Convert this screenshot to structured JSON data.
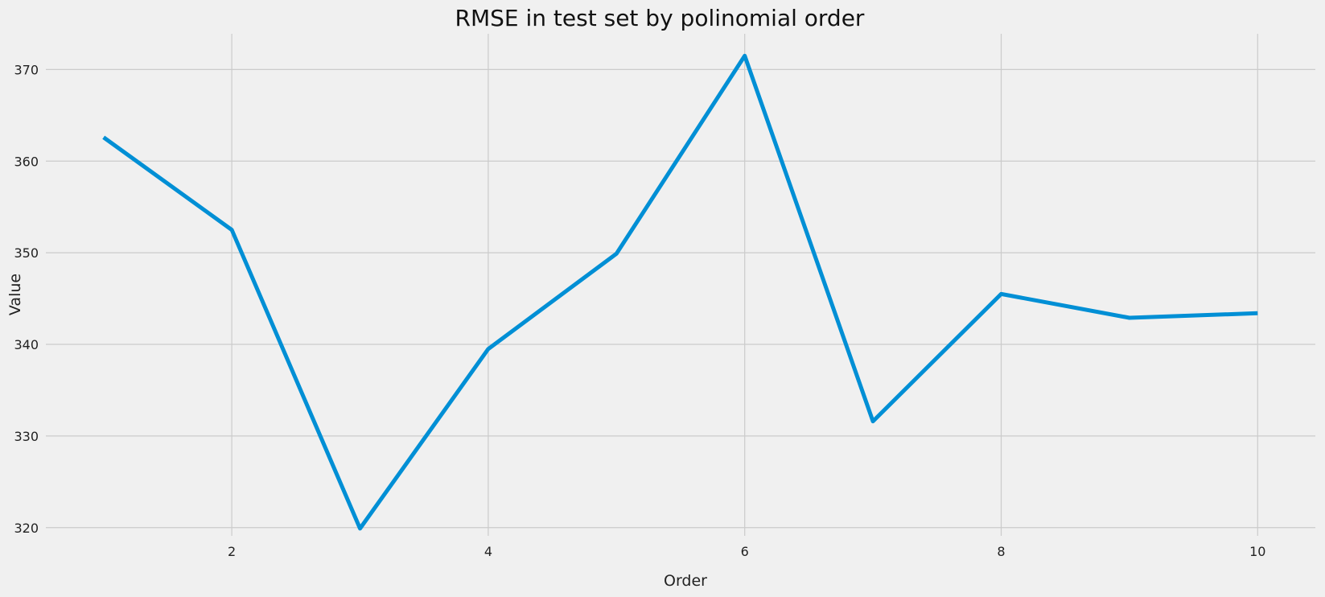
{
  "chart_data": {
    "type": "line",
    "title": "RMSE in test set by polinomial order",
    "xlabel": "Order",
    "ylabel": "Value",
    "x": [
      1,
      2,
      3,
      4,
      5,
      6,
      7,
      8,
      9,
      10
    ],
    "series": [
      {
        "values": [
          362.6,
          352.5,
          319.9,
          339.5,
          349.9,
          371.5,
          331.6,
          345.5,
          342.9,
          343.4
        ]
      }
    ],
    "xlim": [
      0.55,
      10.45
    ],
    "ylim": [
      319.1,
      373.9
    ],
    "xticks": [
      2,
      4,
      6,
      8,
      10
    ],
    "yticks": [
      320,
      330,
      340,
      350,
      360,
      370
    ],
    "grid": true,
    "legend": "none",
    "colors": {
      "background": "#f0f0f0",
      "grid": "#cbcbcb",
      "line": "#008fd5"
    }
  }
}
